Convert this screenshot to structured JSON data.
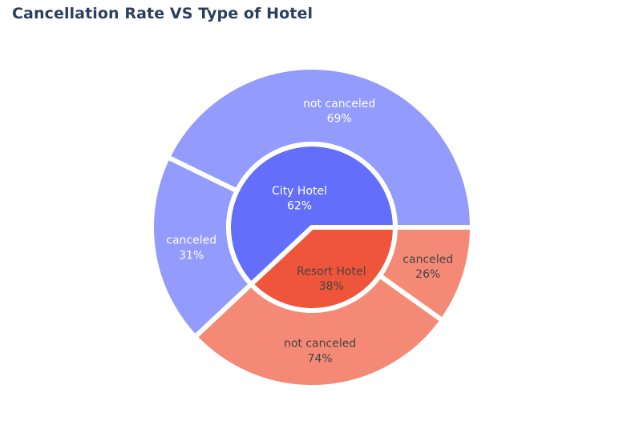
{
  "chart_data": {
    "type": "sunburst",
    "title": "Cancellation Rate VS Type of Hotel",
    "inner": [
      {
        "label": "City Hotel",
        "percent": "62%",
        "share": 0.62,
        "color": "#636efa"
      },
      {
        "label": "Resort Hotel",
        "percent": "38%",
        "share": 0.38,
        "color": "#ef553b"
      }
    ],
    "outer": [
      {
        "parent": "City Hotel",
        "label": "not canceled",
        "percent": "69%",
        "share": 0.69,
        "color": "#939bfc"
      },
      {
        "parent": "City Hotel",
        "label": "canceled",
        "percent": "31%",
        "share": 0.31,
        "color": "#939bfc"
      },
      {
        "parent": "Resort Hotel",
        "label": "canceled",
        "percent": "26%",
        "share": 0.26,
        "color": "#f48a76"
      },
      {
        "parent": "Resort Hotel",
        "label": "not canceled",
        "percent": "74%",
        "share": 0.74,
        "color": "#f48a76"
      }
    ]
  }
}
